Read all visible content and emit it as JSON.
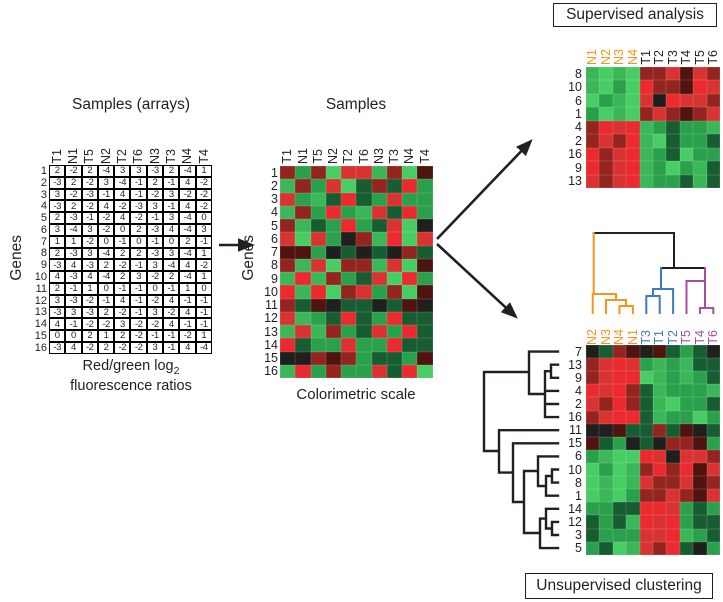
{
  "palette": {
    "value_colors": {
      "-4": "#47cd63",
      "-3": "#3bb75a",
      "-2": "#2aa04c",
      "-1": "#185c32",
      "0": "#1f201e",
      "1": "#4f1410",
      "2": "#93241f",
      "3": "#d93331",
      "4": "#ea2a2e"
    },
    "normal_orange": "#f7941d",
    "tumor_blue": "#3a7cc1",
    "tumor_purple": "#a4509e",
    "line_black": "#231f20"
  },
  "samples_base_order": [
    "T1",
    "N1",
    "T5",
    "N2",
    "T2",
    "T6",
    "N3",
    "T3",
    "N4",
    "T4"
  ],
  "gene_labels": [
    "1",
    "2",
    "3",
    "4",
    "5",
    "6",
    "7",
    "8",
    "9",
    "10",
    "11",
    "12",
    "13",
    "14",
    "15",
    "16"
  ],
  "matrix": [
    [
      2,
      -2,
      2,
      -4,
      3,
      3,
      -3,
      2,
      -4,
      1
    ],
    [
      -3,
      2,
      -2,
      3,
      -4,
      -1,
      2,
      -1,
      4,
      -2
    ],
    [
      3,
      -2,
      -3,
      -1,
      4,
      -1,
      -2,
      3,
      -2,
      -2
    ],
    [
      -3,
      2,
      -2,
      4,
      -2,
      -3,
      3,
      -1,
      4,
      -2
    ],
    [
      2,
      -3,
      -1,
      -2,
      4,
      -2,
      -1,
      3,
      -4,
      0
    ],
    [
      3,
      -4,
      3,
      -2,
      0,
      2,
      -3,
      4,
      -4,
      3
    ],
    [
      1,
      1,
      -2,
      0,
      -1,
      0,
      -1,
      0,
      2,
      -1
    ],
    [
      2,
      -3,
      3,
      -4,
      2,
      2,
      -3,
      3,
      -4,
      1
    ],
    [
      -3,
      4,
      -3,
      2,
      -2,
      -1,
      3,
      -4,
      4,
      -2
    ],
    [
      4,
      -3,
      4,
      -4,
      2,
      3,
      -2,
      2,
      -4,
      1
    ],
    [
      2,
      -1,
      1,
      0,
      -1,
      -1,
      0,
      -1,
      1,
      0
    ],
    [
      3,
      -3,
      -2,
      -1,
      4,
      -1,
      -2,
      4,
      -1,
      -1
    ],
    [
      -3,
      3,
      -3,
      2,
      -2,
      -1,
      3,
      -2,
      4,
      -1
    ],
    [
      4,
      -1,
      -2,
      -2,
      3,
      -2,
      -2,
      4,
      -1,
      -1
    ],
    [
      0,
      0,
      2,
      1,
      2,
      -2,
      -1,
      -1,
      -2,
      1
    ],
    [
      -3,
      4,
      -2,
      2,
      -2,
      -2,
      3,
      -1,
      4,
      -4
    ]
  ],
  "left_table": {
    "title": "Samples (arrays)",
    "y_axis_label": "Genes",
    "caption": {
      "pre": "Red/green log",
      "sub": "2",
      "line2": "fluorescence ratios"
    }
  },
  "middle_heatmap": {
    "title": "Samples",
    "y_axis_label": "Genes",
    "caption": "Colorimetric scale"
  },
  "supervised": {
    "title": "Supervised analysis",
    "columns": [
      {
        "label": "N1",
        "group": "normal"
      },
      {
        "label": "N2",
        "group": "normal"
      },
      {
        "label": "N3",
        "group": "normal"
      },
      {
        "label": "N4",
        "group": "normal"
      },
      {
        "label": "T1",
        "group": "tumor"
      },
      {
        "label": "T2",
        "group": "tumor"
      },
      {
        "label": "T3",
        "group": "tumor"
      },
      {
        "label": "T4",
        "group": "tumor"
      },
      {
        "label": "T5",
        "group": "tumor"
      },
      {
        "label": "T6",
        "group": "tumor"
      }
    ],
    "rows": [
      "8",
      "10",
      "6",
      "1",
      "4",
      "2",
      "16",
      "9",
      "13"
    ]
  },
  "unsupervised": {
    "caption": "Unsupervised clustering",
    "columns": [
      {
        "label": "N2",
        "group": "normal"
      },
      {
        "label": "N3",
        "group": "normal"
      },
      {
        "label": "N4",
        "group": "normal"
      },
      {
        "label": "N1",
        "group": "normal"
      },
      {
        "label": "T3",
        "group": "tumor_blue"
      },
      {
        "label": "T1",
        "group": "tumor_blue"
      },
      {
        "label": "T2",
        "group": "tumor_blue"
      },
      {
        "label": "T5",
        "group": "tumor_purple"
      },
      {
        "label": "T4",
        "group": "tumor_purple"
      },
      {
        "label": "T6",
        "group": "tumor_purple"
      }
    ],
    "rows": [
      "7",
      "13",
      "9",
      "4",
      "2",
      "16",
      "11",
      "15",
      "6",
      "10",
      "8",
      "1",
      "14",
      "12",
      "3",
      "5"
    ]
  }
}
